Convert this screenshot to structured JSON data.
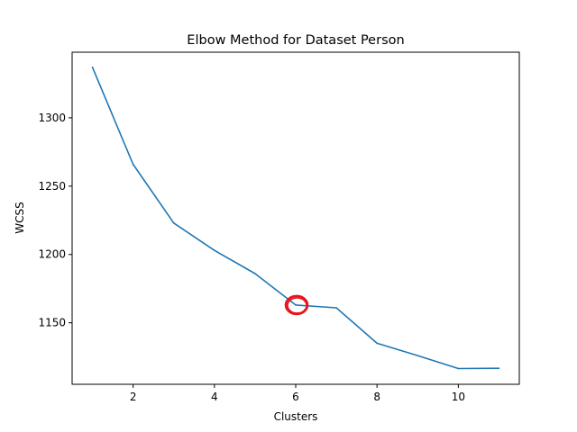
{
  "chart_data": {
    "type": "line",
    "title": "Elbow Method for Dataset Person",
    "xlabel": "Clusters",
    "ylabel": "WCSS",
    "x": [
      1,
      2,
      3,
      4,
      5,
      6,
      7,
      8,
      9,
      10,
      11
    ],
    "series": [
      {
        "values": [
          1337,
          1266,
          1223,
          1203,
          1186,
          1163,
          1161,
          1135,
          1126,
          1116.5,
          1116.7
        ],
        "color": "#1f77b4"
      }
    ],
    "xlim": [
      0.5,
      11.5
    ],
    "ylim": [
      1105,
      1348
    ],
    "xticks": [
      2,
      4,
      6,
      8,
      10
    ],
    "yticks": [
      1150,
      1200,
      1250,
      1300
    ],
    "grid": false,
    "annotations": [
      {
        "type": "circle-marker",
        "x": 6,
        "y": 1163,
        "color": "#e8141c"
      }
    ]
  }
}
